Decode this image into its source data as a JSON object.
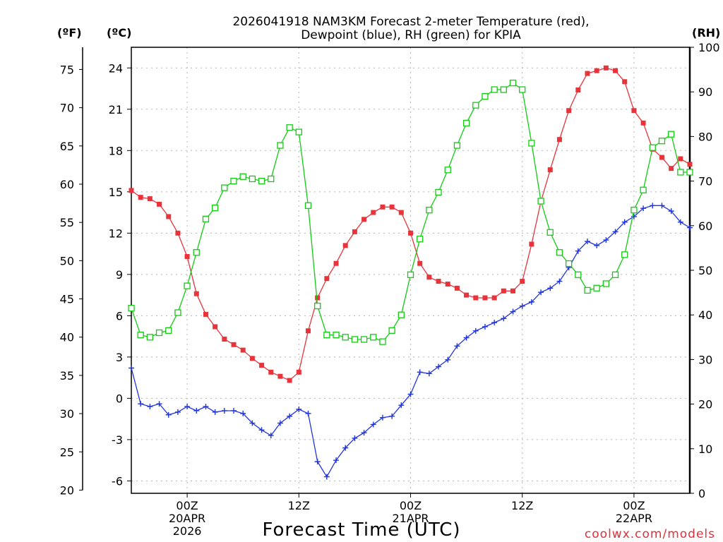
{
  "chart_data": {
    "type": "line",
    "title": [
      "2026041918 NAM3KM Forecast 2-meter Temperature (red),",
      "Dewpoint (blue), RH (green) for KPIA"
    ],
    "xlabel": "Forecast Time (UTC)",
    "credit": "coolwx.com/models",
    "units": {
      "fahrenheit": "(ºF)",
      "celsius": "(ºC)",
      "rh": "(RH)"
    },
    "x_range_hours": [
      18,
      78
    ],
    "y_celsius_range": [
      -6.9,
      25.5
    ],
    "y_rh_range": [
      0,
      100
    ],
    "x_tick_labels": [
      {
        "hour": 24,
        "lines": [
          "00Z",
          "20APR",
          "2026"
        ]
      },
      {
        "hour": 36,
        "lines": [
          "12Z"
        ]
      },
      {
        "hour": 48,
        "lines": [
          "00Z",
          "21APR"
        ]
      },
      {
        "hour": 60,
        "lines": [
          "12Z"
        ]
      },
      {
        "hour": 72,
        "lines": [
          "00Z",
          "22APR"
        ]
      }
    ],
    "y_left_celsius_ticks": [
      "24",
      "21",
      "18",
      "15",
      "12",
      "9",
      "6",
      "3",
      "0",
      "-3",
      "-6"
    ],
    "y_left_fahrenheit_ticks": [
      "75",
      "70",
      "65",
      "60",
      "55",
      "50",
      "45",
      "40",
      "35",
      "30",
      "25",
      "20"
    ],
    "y_right_rh_ticks": [
      "100",
      "90",
      "80",
      "70",
      "60",
      "50",
      "40",
      "30",
      "20",
      "10",
      "0"
    ],
    "x_hours": [
      18,
      19,
      20,
      21,
      22,
      23,
      24,
      25,
      26,
      27,
      28,
      29,
      30,
      31,
      32,
      33,
      34,
      35,
      36,
      37,
      38,
      39,
      40,
      41,
      42,
      43,
      44,
      45,
      46,
      47,
      48,
      49,
      50,
      51,
      52,
      53,
      54,
      55,
      56,
      57,
      58,
      59,
      60,
      61,
      62,
      63,
      64,
      65,
      66,
      67,
      68,
      69,
      70,
      71,
      72,
      73,
      74,
      75,
      76,
      77,
      78
    ],
    "series": [
      {
        "name": "2-meter Temperature",
        "color": "#e8333b",
        "marker": "filled-square",
        "units": "C",
        "values": [
          15.1,
          14.6,
          14.5,
          14.1,
          13.2,
          12.0,
          10.3,
          7.6,
          6.1,
          5.2,
          4.3,
          3.9,
          3.5,
          2.9,
          2.4,
          1.9,
          1.6,
          1.3,
          1.9,
          4.9,
          7.3,
          8.7,
          9.8,
          11.1,
          12.1,
          13.0,
          13.5,
          13.9,
          13.9,
          13.5,
          12.0,
          9.8,
          8.8,
          8.5,
          8.3,
          8.0,
          7.5,
          7.3,
          7.3,
          7.3,
          7.8,
          7.8,
          8.5,
          11.2,
          14.3,
          16.6,
          18.8,
          20.9,
          22.4,
          23.6,
          23.8,
          24.0,
          23.8,
          23.0,
          20.9,
          20.0,
          18.1,
          17.5,
          16.7,
          17.4,
          17.0
        ]
      },
      {
        "name": "Dewpoint",
        "color": "#2034e0",
        "marker": "plus",
        "units": "C",
        "values": [
          2.2,
          -0.4,
          -0.6,
          -0.4,
          -1.2,
          -1.0,
          -0.6,
          -0.9,
          -0.6,
          -1.0,
          -0.9,
          -0.9,
          -1.1,
          -1.8,
          -2.3,
          -2.7,
          -1.8,
          -1.3,
          -0.8,
          -1.1,
          -4.6,
          -5.7,
          -4.5,
          -3.6,
          -2.9,
          -2.5,
          -1.9,
          -1.4,
          -1.3,
          -0.5,
          0.3,
          1.9,
          1.8,
          2.3,
          2.8,
          3.8,
          4.4,
          4.9,
          5.2,
          5.5,
          5.8,
          6.3,
          6.7,
          7.0,
          7.7,
          8.0,
          8.5,
          9.5,
          10.7,
          11.4,
          11.1,
          11.5,
          12.1,
          12.8,
          13.2,
          13.8,
          14.0,
          14.0,
          13.6,
          12.8,
          12.4
        ]
      },
      {
        "name": "RH",
        "color": "#12cc12",
        "marker": "open-square",
        "units": "%",
        "values": [
          41.5,
          35.5,
          35.0,
          36.0,
          36.5,
          40.5,
          46.5,
          54.0,
          61.5,
          64.0,
          68.5,
          70.0,
          71.0,
          70.5,
          70.0,
          70.5,
          78.0,
          82.0,
          81.0,
          64.5,
          42.0,
          35.5,
          35.5,
          35.0,
          34.5,
          34.5,
          35.0,
          34.0,
          36.5,
          40.0,
          49.0,
          57.0,
          63.5,
          67.5,
          72.5,
          78.0,
          83.0,
          87.0,
          89.0,
          90.5,
          90.5,
          92.0,
          90.5,
          78.5,
          65.5,
          58.5,
          54.0,
          51.5,
          49.0,
          45.5,
          46.0,
          47.0,
          49.0,
          53.5,
          63.5,
          68.0,
          77.5,
          79.0,
          80.5,
          72.0,
          72.0
        ]
      }
    ]
  }
}
